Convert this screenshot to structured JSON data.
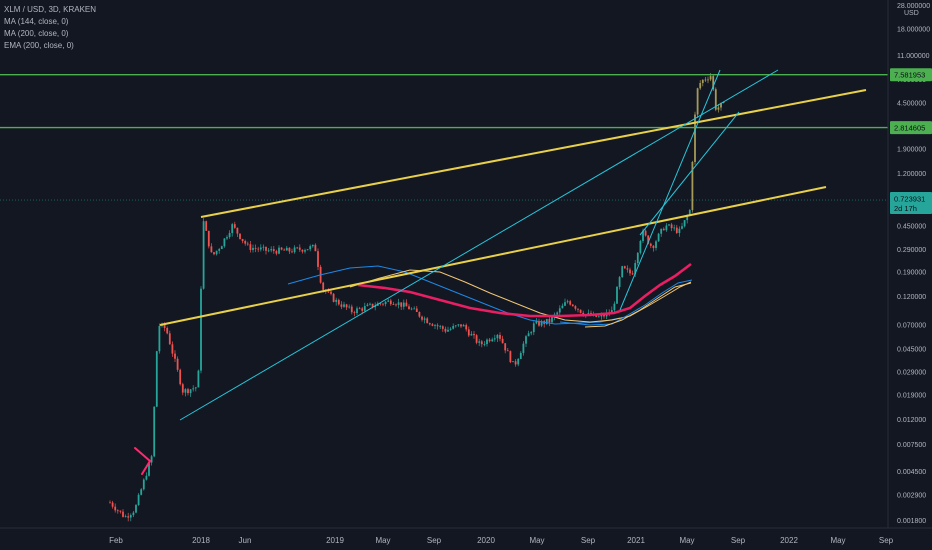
{
  "legend": {
    "symbol": "XLM / USD, 3D, KRAKEN",
    "ma144": "MA (144, close, 0)",
    "ma200": "MA (200, close, 0)",
    "ema200": "EMA (200, close, 0)"
  },
  "chart_data": {
    "type": "candlestick",
    "yscale": "log",
    "currency_label": "USD",
    "y_ticks": [
      "28.000000",
      "18.000000",
      "11.000000",
      "7.000000",
      "4.500000",
      "2.900000",
      "1.900000",
      "1.200000",
      "0.750000",
      "0.450000",
      "0.290000",
      "0.190000",
      "0.120000",
      "0.070000",
      "0.045000",
      "0.029000",
      "0.019000",
      "0.012000",
      "0.007500",
      "0.004500",
      "0.002900",
      "0.001800"
    ],
    "x_ticks": [
      "Feb",
      "2018",
      "Jun",
      "2019",
      "May",
      "Sep",
      "2020",
      "May",
      "Sep",
      "2021",
      "May",
      "Sep",
      "2022",
      "May",
      "Sep"
    ],
    "price_labels": [
      {
        "value": "7.581953",
        "color": "#4caf50"
      },
      {
        "value": "2.814605",
        "color": "#4caf50"
      },
      {
        "value": "0.723931",
        "sub": "2d 17h",
        "color": "#26a69a"
      }
    ],
    "horizontal_levels": [
      7.581953,
      2.814605
    ],
    "colors": {
      "up": "#26a69a",
      "down": "#ef5350",
      "candles": "#a59a58",
      "ma144": "#1e88e5",
      "ma200": "#f0c674",
      "ema200": "#e91e63",
      "trend_yellow": "#e8d04a",
      "trend_cyan": "#26c6da",
      "level_green": "#4caf50",
      "arrow": "#ff2a6d"
    }
  }
}
